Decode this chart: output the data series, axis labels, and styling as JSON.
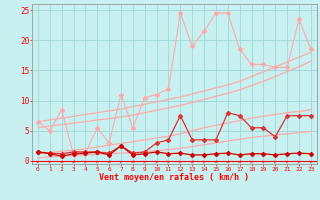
{
  "x": [
    0,
    1,
    2,
    3,
    4,
    5,
    6,
    7,
    8,
    9,
    10,
    11,
    12,
    13,
    14,
    15,
    16,
    17,
    18,
    19,
    20,
    21,
    22,
    23
  ],
  "line_dark1": [
    1.5,
    1.2,
    0.8,
    1.2,
    1.3,
    1.5,
    1.0,
    2.5,
    1.0,
    1.2,
    1.5,
    1.2,
    1.3,
    1.0,
    1.0,
    1.2,
    1.3,
    1.0,
    1.2,
    1.2,
    1.0,
    1.2,
    1.3,
    1.2
  ],
  "line_dark2": [
    1.5,
    1.3,
    1.2,
    1.5,
    1.5,
    1.5,
    1.3,
    2.5,
    1.3,
    1.5,
    3.0,
    3.5,
    7.5,
    3.5,
    3.5,
    3.5,
    8.0,
    7.5,
    5.5,
    5.5,
    4.0,
    7.5,
    7.5,
    7.5
  ],
  "line_light": [
    6.5,
    5.0,
    8.5,
    1.0,
    1.2,
    5.5,
    3.0,
    11.0,
    5.5,
    10.5,
    11.0,
    12.0,
    24.5,
    19.0,
    21.5,
    24.5,
    24.5,
    18.5,
    16.0,
    16.0,
    15.5,
    15.5,
    23.5,
    18.5
  ],
  "trend_a": [
    0.5,
    0.7,
    0.8,
    0.9,
    1.0,
    1.1,
    1.2,
    1.3,
    1.4,
    1.5,
    1.7,
    1.9,
    2.1,
    2.4,
    2.7,
    3.0,
    3.3,
    3.6,
    3.9,
    4.1,
    4.3,
    4.5,
    4.7,
    4.9
  ],
  "trend_b": [
    1.2,
    1.4,
    1.6,
    1.8,
    2.0,
    2.3,
    2.6,
    2.9,
    3.2,
    3.5,
    3.8,
    4.1,
    4.5,
    5.0,
    5.5,
    5.9,
    6.3,
    6.7,
    7.1,
    7.4,
    7.7,
    8.0,
    8.2,
    8.5
  ],
  "trend_c": [
    5.5,
    5.8,
    6.0,
    6.3,
    6.5,
    6.8,
    7.0,
    7.3,
    7.6,
    8.0,
    8.4,
    8.8,
    9.2,
    9.7,
    10.2,
    10.7,
    11.2,
    11.8,
    12.5,
    13.2,
    14.0,
    14.8,
    15.6,
    16.5
  ],
  "trend_d": [
    6.5,
    6.8,
    7.1,
    7.4,
    7.7,
    8.0,
    8.3,
    8.6,
    9.0,
    9.4,
    9.8,
    10.2,
    10.6,
    11.1,
    11.6,
    12.1,
    12.6,
    13.2,
    14.0,
    14.8,
    15.6,
    16.4,
    17.2,
    18.0
  ],
  "xlabel": "Vent moyen/en rafales ( km/h )",
  "bg_color": "#c8f0f0",
  "grid_color": "#a0d8d8",
  "dark_red": "#cc0000",
  "medium_red": "#dd3333",
  "light_pink": "#ffaaaa",
  "arrow_color": "#ee4444",
  "yticks": [
    0,
    5,
    10,
    15,
    20,
    25
  ],
  "xticks": [
    0,
    1,
    2,
    3,
    4,
    5,
    6,
    7,
    8,
    9,
    10,
    11,
    12,
    13,
    14,
    15,
    16,
    17,
    18,
    19,
    20,
    21,
    22,
    23
  ],
  "arrow_angles": [
    45,
    45,
    225,
    225,
    45,
    45,
    225,
    45,
    225,
    45,
    45,
    45,
    45,
    225,
    45,
    225,
    225,
    225,
    45,
    45,
    45,
    45,
    45,
    45
  ]
}
